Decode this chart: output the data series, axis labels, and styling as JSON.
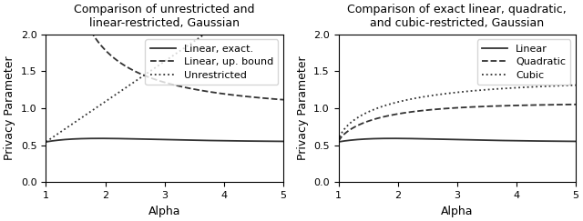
{
  "title1": "Comparison of unrestricted and\nlinear-restricted, Gaussian",
  "title2": "Comparison of exact linear, quadratic,\nand cubic-restricted, Gaussian",
  "xlabel": "Alpha",
  "ylabel": "Privacy Parameter",
  "xlim": [
    1,
    5
  ],
  "ylim": [
    0.0,
    2.0
  ],
  "yticks": [
    0.0,
    0.5,
    1.0,
    1.5,
    2.0
  ],
  "xticks": [
    1,
    2,
    3,
    4,
    5
  ],
  "legend1": [
    "Linear, exact.",
    "Linear, up. bound",
    "Unrestricted"
  ],
  "legend2": [
    "Linear",
    "Quadratic",
    "Cubic"
  ],
  "line_color": "#333333",
  "figsize": [
    6.4,
    2.43
  ],
  "dpi": 100
}
